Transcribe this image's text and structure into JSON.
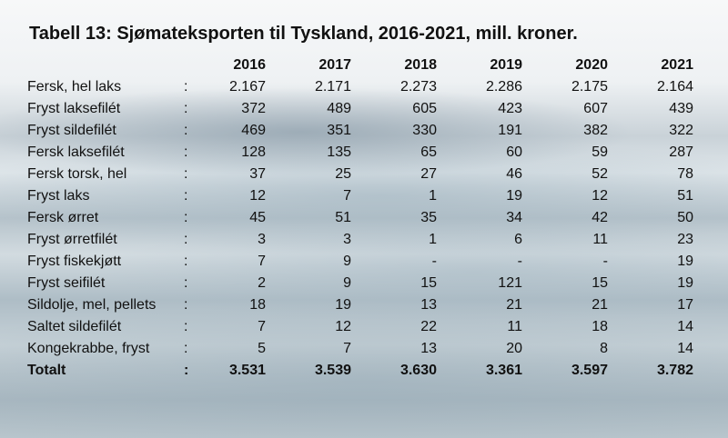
{
  "title": "Tabell 13: Sjømateksporten til Tyskland, 2016-2021, mill. kroner.",
  "table": {
    "years": [
      "2016",
      "2017",
      "2018",
      "2019",
      "2020",
      "2021"
    ],
    "rows": [
      {
        "label": "Fersk, hel laks",
        "colon": ":",
        "values": [
          "2.167",
          "2.171",
          "2.273",
          "2.286",
          "2.175",
          "2.164"
        ]
      },
      {
        "label": "Fryst laksefilét",
        "colon": ":",
        "values": [
          "372",
          "489",
          "605",
          "423",
          "607",
          "439"
        ]
      },
      {
        "label": "Fryst sildefilét",
        "colon": ":",
        "values": [
          "469",
          "351",
          "330",
          "191",
          "382",
          "322"
        ]
      },
      {
        "label": "Fersk laksefilét",
        "colon": ":",
        "values": [
          "128",
          "135",
          "65",
          "60",
          "59",
          "287"
        ]
      },
      {
        "label": "Fersk torsk, hel",
        "colon": ":",
        "values": [
          "37",
          "25",
          "27",
          "46",
          "52",
          "78"
        ]
      },
      {
        "label": "Fryst laks",
        "colon": ":",
        "values": [
          "12",
          "7",
          "1",
          "19",
          "12",
          "51"
        ]
      },
      {
        "label": "Fersk ørret",
        "colon": ":",
        "values": [
          "45",
          "51",
          "35",
          "34",
          "42",
          "50"
        ]
      },
      {
        "label": "Fryst ørretfilét",
        "colon": ":",
        "values": [
          "3",
          "3",
          "1",
          "6",
          "11",
          "23"
        ]
      },
      {
        "label": "Fryst fiskekjøtt",
        "colon": ":",
        "values": [
          "7",
          "9",
          "-",
          "-",
          "-",
          "19"
        ]
      },
      {
        "label": "Fryst seifilét",
        "colon": ":",
        "values": [
          "2",
          "9",
          "15",
          "121",
          "15",
          "19"
        ]
      },
      {
        "label": "Sildolje, mel, pellets",
        "colon": ":",
        "values": [
          "18",
          "19",
          "13",
          "21",
          "21",
          "17"
        ]
      },
      {
        "label": "Saltet sildefilét",
        "colon": ":",
        "values": [
          "7",
          "12",
          "22",
          "11",
          "18",
          "14"
        ]
      },
      {
        "label": "Kongekrabbe, fryst",
        "colon": ":",
        "values": [
          "5",
          "7",
          "13",
          "20",
          "8",
          "14"
        ]
      }
    ],
    "total": {
      "label": "Totalt",
      "colon": ":",
      "values": [
        "3.531",
        "3.539",
        "3.630",
        "3.361",
        "3.597",
        "3.782"
      ]
    }
  }
}
